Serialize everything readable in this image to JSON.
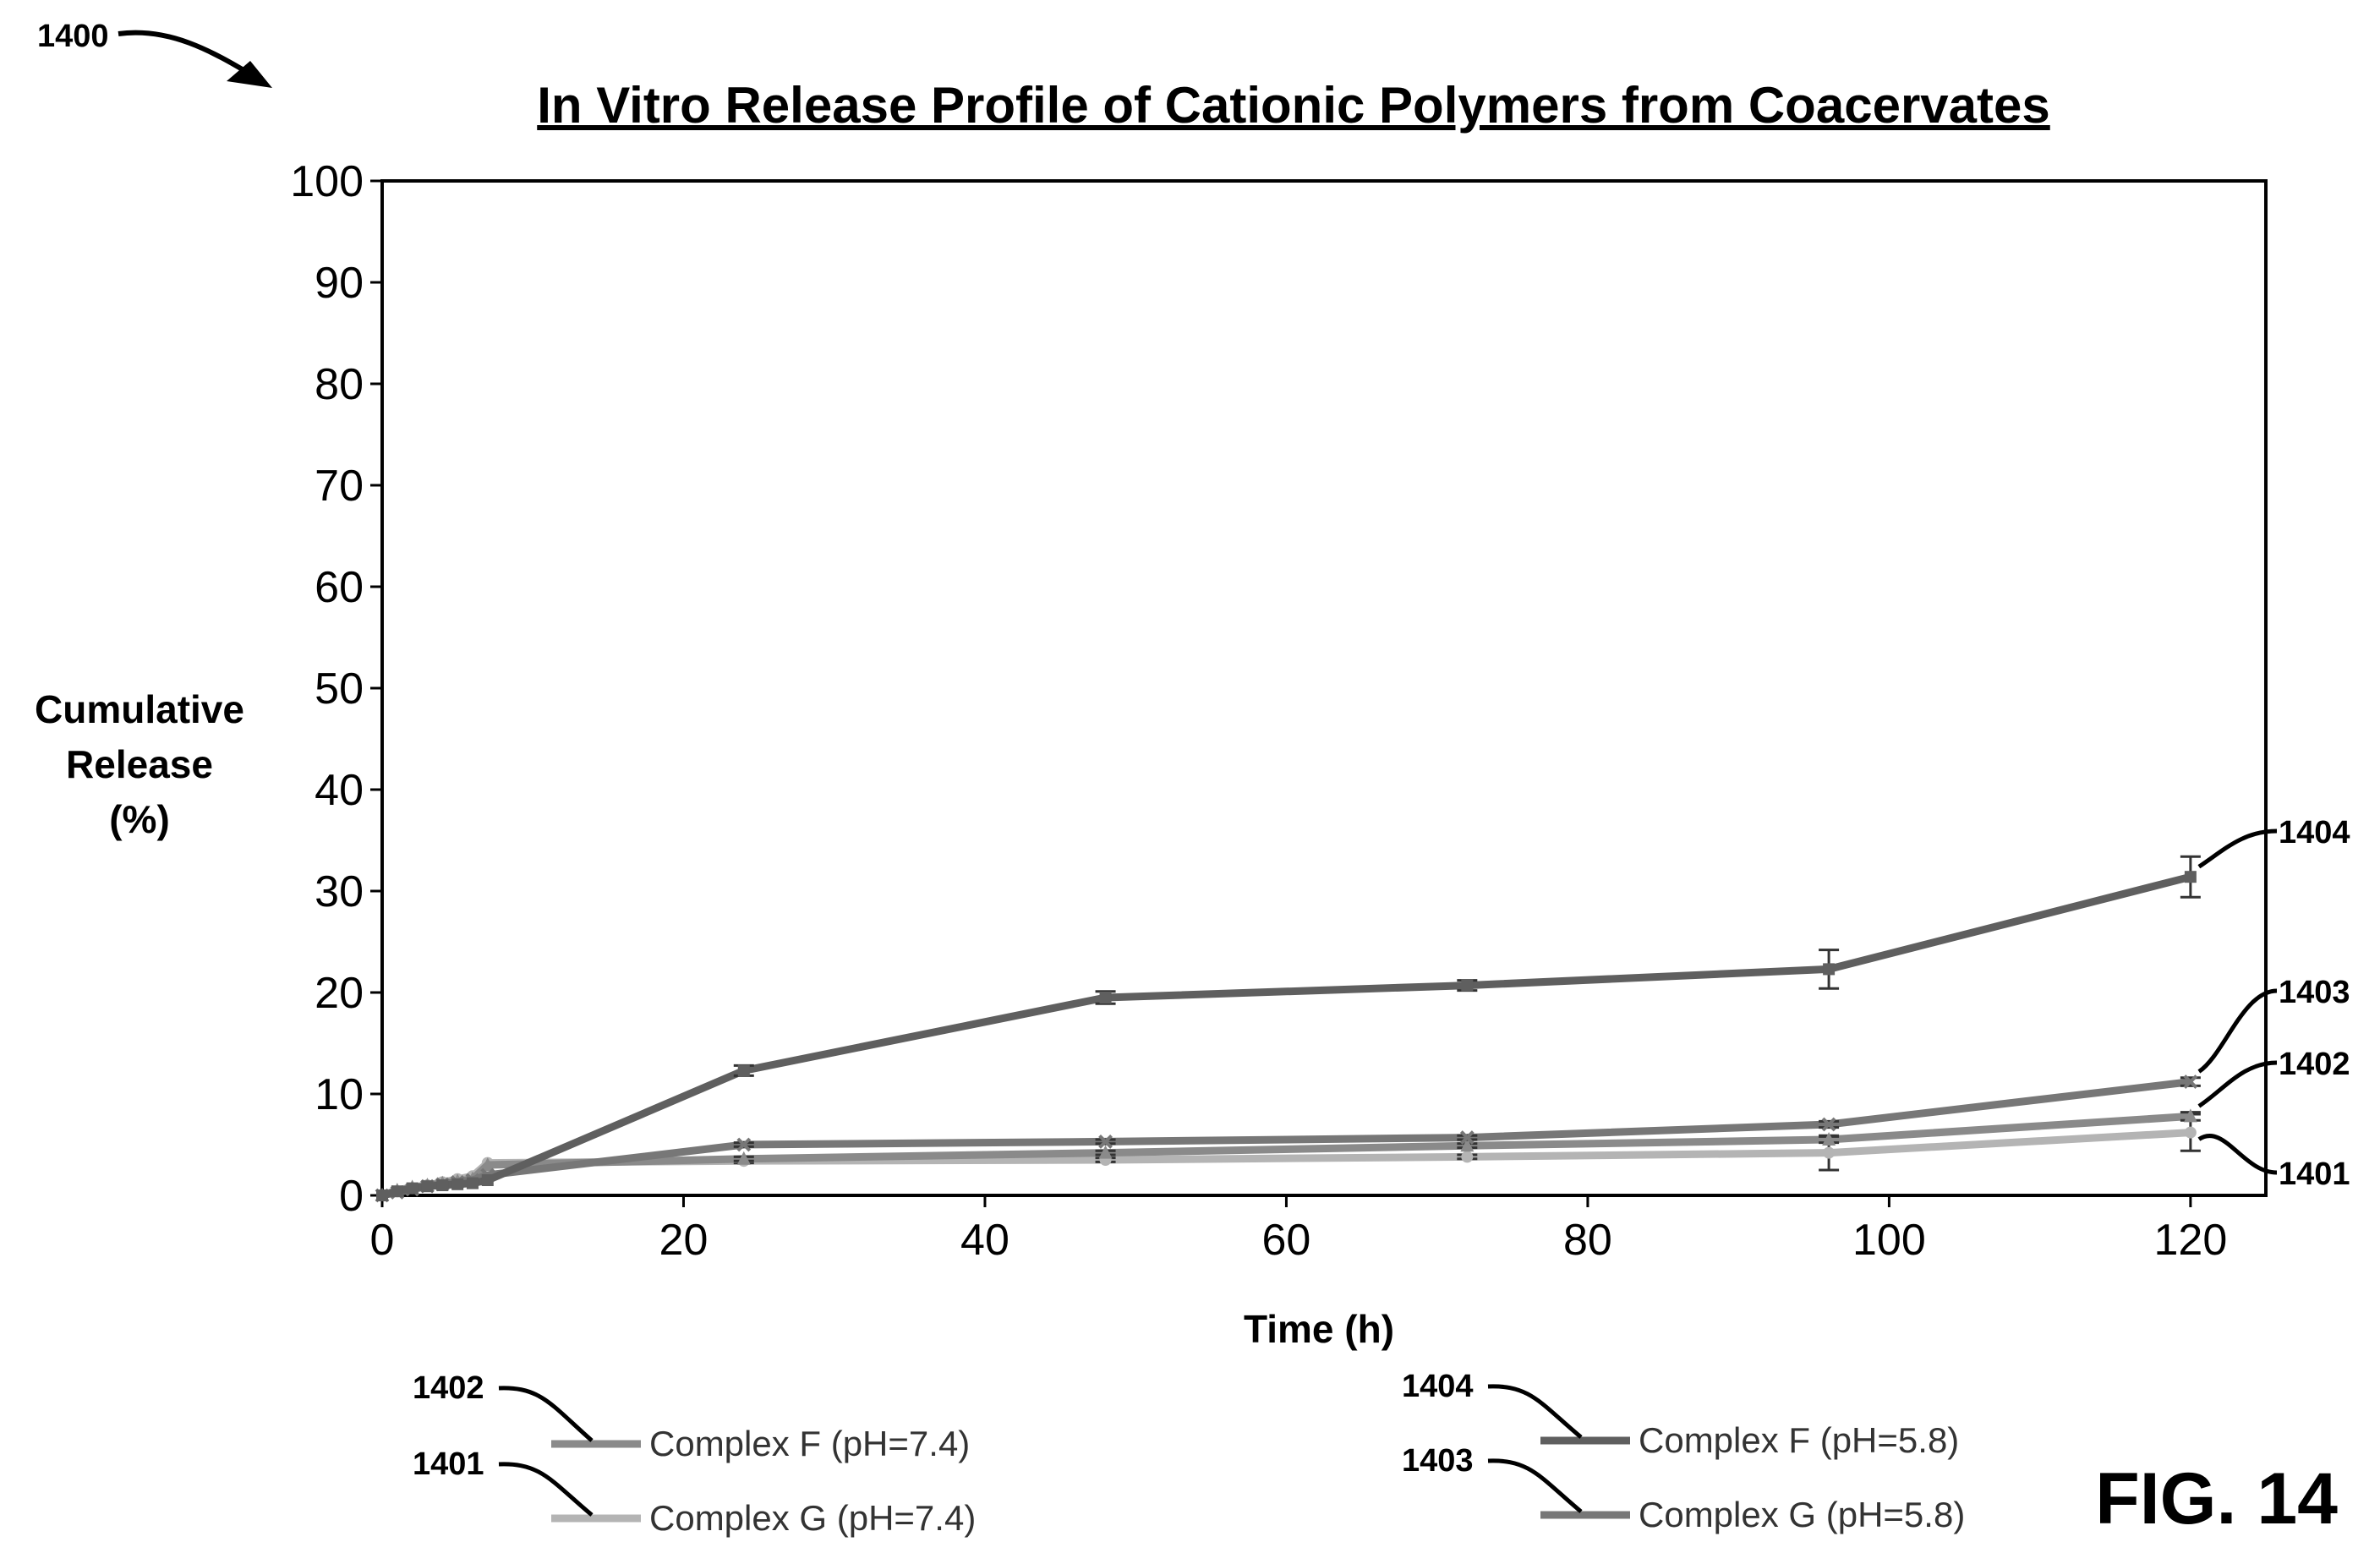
{
  "figure_ref": "1400",
  "figure_label": "FIG. 14",
  "chart_data": {
    "type": "line",
    "title": "In Vitro Release Profile of Cationic Polymers from Coacervates",
    "xlabel": "Time (h)",
    "ylabel_lines": [
      "Cumulative",
      "Release",
      "(%)"
    ],
    "xlim": [
      0,
      125
    ],
    "ylim": [
      0,
      100
    ],
    "xticks": [
      0,
      20,
      40,
      60,
      80,
      100,
      120
    ],
    "yticks": [
      0,
      10,
      20,
      30,
      40,
      50,
      60,
      70,
      80,
      90,
      100
    ],
    "grid": false,
    "legend_position": "bottom",
    "series": [
      {
        "name": "Complex F (pH=5.8)",
        "ref": "1404",
        "color": "#5f5f5f",
        "marker": "square",
        "x": [
          0,
          1,
          2,
          3,
          4,
          5,
          6,
          7,
          24,
          48,
          72,
          96,
          120
        ],
        "y": [
          0,
          0.4,
          0.7,
          0.9,
          1.0,
          1.1,
          1.2,
          1.5,
          12.3,
          19.5,
          20.7,
          22.3,
          31.4
        ],
        "err": [
          0,
          0,
          0,
          0,
          0,
          0,
          0,
          0,
          0.5,
          0.6,
          0.5,
          1.9,
          2.0
        ]
      },
      {
        "name": "Complex G (pH=5.8)",
        "ref": "1403",
        "color": "#777777",
        "marker": "cross",
        "x": [
          0,
          1,
          2,
          3,
          4,
          5,
          6,
          7,
          24,
          48,
          72,
          96,
          120
        ],
        "y": [
          0,
          0.3,
          0.6,
          0.9,
          1.1,
          1.3,
          1.5,
          2.0,
          5.0,
          5.3,
          5.7,
          7.0,
          11.2
        ],
        "err": [
          0,
          0,
          0,
          0,
          0,
          0,
          0,
          0,
          0.2,
          0.2,
          0.2,
          0.3,
          0.4
        ]
      },
      {
        "name": "Complex F (pH=7.4)",
        "ref": "1402",
        "color": "#8a8a8a",
        "marker": "triangle",
        "x": [
          0,
          1,
          2,
          3,
          4,
          5,
          6,
          7,
          24,
          48,
          72,
          96,
          120
        ],
        "y": [
          0,
          0.5,
          0.8,
          1.0,
          1.2,
          1.4,
          1.6,
          3.0,
          3.6,
          4.2,
          4.9,
          5.5,
          7.8
        ],
        "err": [
          0,
          0,
          0,
          0,
          0,
          0,
          0,
          0,
          0.2,
          0.2,
          0.2,
          0.3,
          0.4
        ]
      },
      {
        "name": "Complex G (pH=7.4)",
        "ref": "1401",
        "color": "#b4b4b4",
        "marker": "circle",
        "x": [
          0,
          1,
          2,
          3,
          4,
          5,
          6,
          7,
          24,
          48,
          72,
          96,
          120
        ],
        "y": [
          0,
          0.4,
          0.7,
          1.0,
          1.3,
          1.6,
          1.9,
          3.2,
          3.4,
          3.5,
          3.8,
          4.2,
          6.2
        ],
        "err": [
          0,
          0,
          0,
          0,
          0,
          0,
          0,
          0,
          0.2,
          0.2,
          0.2,
          1.7,
          1.8
        ]
      }
    ]
  }
}
